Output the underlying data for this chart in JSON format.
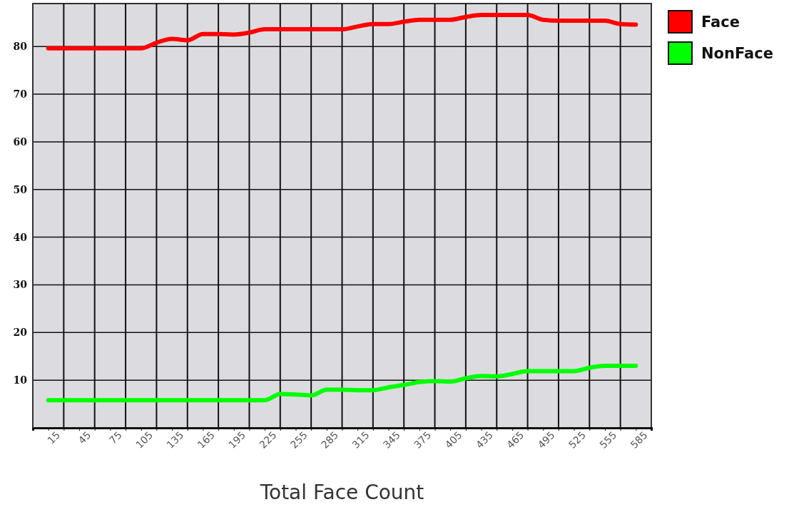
{
  "chart_data": {
    "type": "line",
    "xlabel": "Total Face Count",
    "x": [
      15,
      30,
      45,
      60,
      75,
      90,
      105,
      120,
      135,
      150,
      165,
      180,
      195,
      210,
      225,
      240,
      255,
      270,
      285,
      300,
      315,
      330,
      345,
      360,
      375,
      390,
      405,
      420,
      435,
      450,
      465,
      480,
      495,
      510,
      525,
      540,
      555,
      570,
      585
    ],
    "series": [
      {
        "name": "Face",
        "color": "#ff0000",
        "values": [
          79.6,
          79.6,
          79.6,
          79.6,
          79.6,
          79.6,
          79.6,
          80.8,
          81.6,
          81.3,
          82.6,
          82.6,
          82.5,
          82.9,
          83.6,
          83.6,
          83.6,
          83.6,
          83.6,
          83.6,
          84.2,
          84.7,
          84.7,
          85.2,
          85.6,
          85.6,
          85.6,
          86.2,
          86.6,
          86.6,
          86.6,
          86.6,
          85.6,
          85.4,
          85.4,
          85.4,
          85.4,
          84.7,
          84.6
        ]
      },
      {
        "name": "NonFace",
        "color": "#00ff00",
        "values": [
          5.8,
          5.8,
          5.8,
          5.8,
          5.8,
          5.8,
          5.8,
          5.8,
          5.8,
          5.8,
          5.8,
          5.8,
          5.8,
          5.8,
          5.8,
          7.1,
          7.0,
          6.8,
          8.0,
          8.0,
          7.9,
          7.9,
          8.5,
          9.0,
          9.6,
          9.8,
          9.7,
          10.4,
          10.9,
          10.8,
          11.3,
          11.9,
          11.9,
          11.9,
          11.9,
          12.6,
          13.0,
          13.0,
          13.0
        ]
      }
    ],
    "xlim": [
      0,
      600
    ],
    "xticks": [
      15,
      {
        "value": 30,
        "label": null
      },
      45,
      {
        "value": 60,
        "label": null
      },
      75,
      {
        "value": 90,
        "label": null
      },
      105,
      {
        "value": 120,
        "label": null
      },
      135,
      {
        "value": 150,
        "label": null
      },
      165,
      {
        "value": 180,
        "label": null
      },
      195,
      {
        "value": 210,
        "label": null
      },
      225,
      {
        "value": 240,
        "label": null
      },
      255,
      {
        "value": 270,
        "label": null
      },
      285,
      {
        "value": 300,
        "label": null
      },
      315,
      {
        "value": 330,
        "label": null
      },
      345,
      {
        "value": 360,
        "label": null
      },
      375,
      {
        "value": 390,
        "label": null
      },
      405,
      {
        "value": 420,
        "label": null
      },
      435,
      {
        "value": 450,
        "label": null
      },
      465,
      {
        "value": 480,
        "label": null
      },
      495,
      {
        "value": 510,
        "label": null
      },
      525,
      {
        "value": 540,
        "label": null
      },
      555,
      {
        "value": 570,
        "label": null
      },
      585
    ],
    "ylim": [
      0,
      89
    ],
    "yticks": [
      10,
      20,
      30,
      40,
      50,
      60,
      70,
      80
    ],
    "grid": true,
    "legend": "top right",
    "marker": "none",
    "line_style": "solid"
  }
}
